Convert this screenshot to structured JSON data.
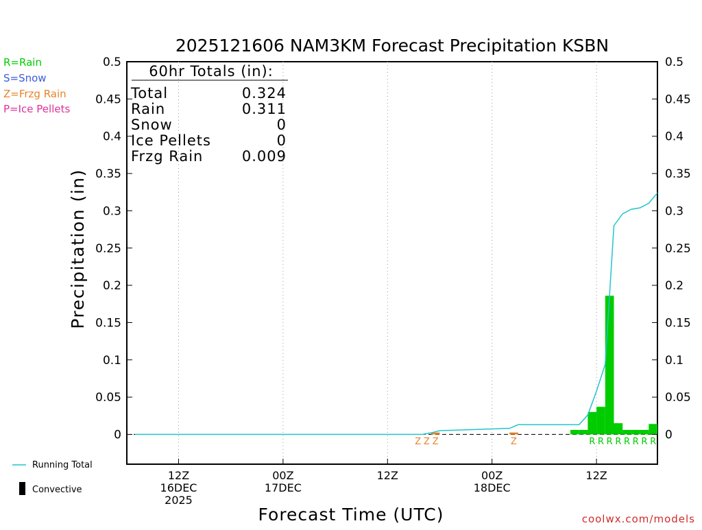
{
  "title": "2025121606 NAM3KM Forecast Precipitation KSBN",
  "legend": {
    "rain": {
      "label": "R=Rain",
      "color": "#00cc00"
    },
    "snow": {
      "label": "S=Snow",
      "color": "#3b5bdb"
    },
    "frzg": {
      "label": "Z=Frzg Rain",
      "color": "#e6832a"
    },
    "ice": {
      "label": "P=Ice Pellets",
      "color": "#e0309a"
    },
    "running_total": {
      "label": "Running Total",
      "color": "#22c4cc"
    },
    "convective": {
      "label": "Convective",
      "color": "#000000"
    }
  },
  "totals": {
    "heading": "60hr Totals (in):",
    "rows": [
      {
        "label": "Total",
        "value": "0.324"
      },
      {
        "label": "Rain",
        "value": "0.311"
      },
      {
        "label": "Snow",
        "value": "0"
      },
      {
        "label": "Ice Pellets",
        "value": "0"
      },
      {
        "label": "Frzg Rain",
        "value": "0.009"
      }
    ]
  },
  "footer": "coolwx.com/models",
  "chart_data": {
    "type": "bar",
    "title": "2025121606 NAM3KM Forecast Precipitation KSBN",
    "xlabel": "Forecast Time (UTC)",
    "ylabel": "Precipitation (in)",
    "ylim": [
      -0.04,
      0.5
    ],
    "yticks": [
      "0",
      "0.05",
      "0.1",
      "0.15",
      "0.2",
      "0.25",
      "0.3",
      "0.35",
      "0.4",
      "0.45",
      "0.5"
    ],
    "x_range_hours": [
      1,
      61
    ],
    "x_ticks": [
      {
        "hour": 6,
        "lines": [
          "12Z",
          "16DEC",
          "2025"
        ]
      },
      {
        "hour": 18,
        "lines": [
          "00Z",
          "17DEC"
        ]
      },
      {
        "hour": 30,
        "lines": [
          "12Z"
        ]
      },
      {
        "hour": 42,
        "lines": [
          "00Z",
          "18DEC"
        ]
      },
      {
        "hour": 54,
        "lines": [
          "12Z"
        ]
      }
    ],
    "grid": "vertical dotted at x ticks",
    "hourly_bars": [
      {
        "hour": 36,
        "value": 0.0025,
        "type": "Z"
      },
      {
        "hour": 45,
        "value": 0.0025,
        "type": "Z"
      },
      {
        "hour": 52,
        "value": 0.006,
        "type": "R"
      },
      {
        "hour": 53,
        "value": 0.006,
        "type": "R"
      },
      {
        "hour": 54,
        "value": 0.03,
        "type": "R"
      },
      {
        "hour": 55,
        "value": 0.037,
        "type": "R"
      },
      {
        "hour": 56,
        "value": 0.186,
        "type": "R"
      },
      {
        "hour": 57,
        "value": 0.015,
        "type": "R"
      },
      {
        "hour": 58,
        "value": 0.006,
        "type": "R"
      },
      {
        "hour": 59,
        "value": 0.006,
        "type": "R"
      },
      {
        "hour": 60,
        "value": 0.006,
        "type": "R"
      },
      {
        "hour": 61,
        "value": 0.014,
        "type": "R"
      }
    ],
    "type_markers": [
      {
        "hour": 34,
        "label": "Z"
      },
      {
        "hour": 35,
        "label": "Z"
      },
      {
        "hour": 36,
        "label": "Z"
      },
      {
        "hour": 45,
        "label": "Z"
      },
      {
        "hour": 54,
        "label": "R"
      },
      {
        "hour": 55,
        "label": "R"
      },
      {
        "hour": 56,
        "label": "R"
      },
      {
        "hour": 57,
        "label": "R"
      },
      {
        "hour": 58,
        "label": "R"
      },
      {
        "hour": 59,
        "label": "R"
      },
      {
        "hour": 60,
        "label": "R"
      },
      {
        "hour": 61,
        "label": "R"
      }
    ],
    "running_total": [
      {
        "hour": 1,
        "value": 0
      },
      {
        "hour": 34,
        "value": 0
      },
      {
        "hour": 35,
        "value": 0.002
      },
      {
        "hour": 36,
        "value": 0.005
      },
      {
        "hour": 44,
        "value": 0.008
      },
      {
        "hour": 45,
        "value": 0.013
      },
      {
        "hour": 52,
        "value": 0.013
      },
      {
        "hour": 53,
        "value": 0.026
      },
      {
        "hour": 54,
        "value": 0.058
      },
      {
        "hour": 55,
        "value": 0.094
      },
      {
        "hour": 56,
        "value": 0.28
      },
      {
        "hour": 57,
        "value": 0.296
      },
      {
        "hour": 58,
        "value": 0.302
      },
      {
        "hour": 59,
        "value": 0.304
      },
      {
        "hour": 60,
        "value": 0.31
      },
      {
        "hour": 61,
        "value": 0.324
      }
    ]
  }
}
